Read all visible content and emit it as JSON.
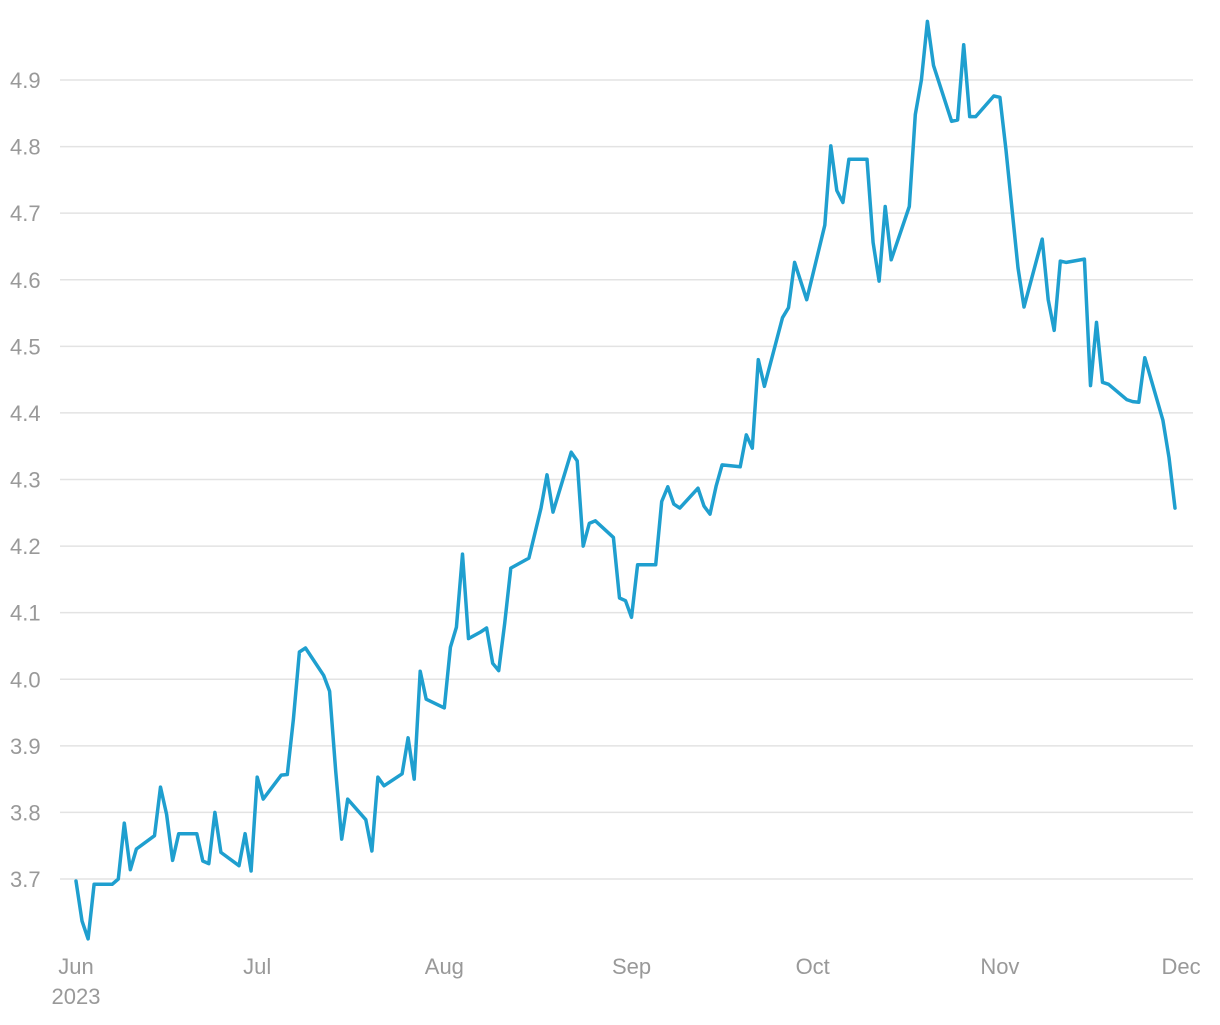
{
  "chart_data": {
    "type": "line",
    "title": "",
    "xlabel": "",
    "ylabel": "",
    "ylim": [
      3.6,
      4.99
    ],
    "yticks": [
      3.7,
      3.8,
      3.9,
      4.0,
      4.1,
      4.2,
      4.3,
      4.4,
      4.5,
      4.6,
      4.7,
      4.8,
      4.9
    ],
    "ytick_labels": [
      "3.7",
      "3.8",
      "3.9",
      "4.0",
      "4.1",
      "4.2",
      "4.3",
      "4.4",
      "4.5",
      "4.6",
      "4.7",
      "4.8",
      "4.9"
    ],
    "xlim": [
      "2023-05-30",
      "2023-12-01"
    ],
    "xticks": [
      {
        "date": "2023-06-01",
        "label": "Jun",
        "sublabel": "2023"
      },
      {
        "date": "2023-07-01",
        "label": "Jul",
        "sublabel": ""
      },
      {
        "date": "2023-08-01",
        "label": "Aug",
        "sublabel": ""
      },
      {
        "date": "2023-09-01",
        "label": "Sep",
        "sublabel": ""
      },
      {
        "date": "2023-10-01",
        "label": "Oct",
        "sublabel": ""
      },
      {
        "date": "2023-11-01",
        "label": "Nov",
        "sublabel": ""
      },
      {
        "date": "2023-12-01",
        "label": "Dec",
        "sublabel": ""
      }
    ],
    "grid": true,
    "line_color": "#1f9fcf",
    "series": [
      {
        "name": "",
        "points": [
          [
            "2023-06-01",
            3.697
          ],
          [
            "2023-06-02",
            3.637
          ],
          [
            "2023-06-03",
            3.61
          ],
          [
            "2023-06-04",
            3.692
          ],
          [
            "2023-06-07",
            3.692
          ],
          [
            "2023-06-08",
            3.7
          ],
          [
            "2023-06-09",
            3.784
          ],
          [
            "2023-06-10",
            3.714
          ],
          [
            "2023-06-11",
            3.745
          ],
          [
            "2023-06-14",
            3.765
          ],
          [
            "2023-06-15",
            3.838
          ],
          [
            "2023-06-16",
            3.797
          ],
          [
            "2023-06-17",
            3.728
          ],
          [
            "2023-06-18",
            3.768
          ],
          [
            "2023-06-21",
            3.768
          ],
          [
            "2023-06-22",
            3.727
          ],
          [
            "2023-06-23",
            3.723
          ],
          [
            "2023-06-24",
            3.8
          ],
          [
            "2023-06-25",
            3.74
          ],
          [
            "2023-06-28",
            3.72
          ],
          [
            "2023-06-29",
            3.768
          ],
          [
            "2023-06-30",
            3.712
          ],
          [
            "2023-07-01",
            3.853
          ],
          [
            "2023-07-02",
            3.82
          ],
          [
            "2023-07-05",
            3.856
          ],
          [
            "2023-07-06",
            3.857
          ],
          [
            "2023-07-07",
            3.94
          ],
          [
            "2023-07-08",
            4.041
          ],
          [
            "2023-07-09",
            4.047
          ],
          [
            "2023-07-12",
            4.006
          ],
          [
            "2023-07-13",
            3.982
          ],
          [
            "2023-07-14",
            3.862
          ],
          [
            "2023-07-15",
            3.76
          ],
          [
            "2023-07-16",
            3.82
          ],
          [
            "2023-07-19",
            3.789
          ],
          [
            "2023-07-20",
            3.742
          ],
          [
            "2023-07-21",
            3.853
          ],
          [
            "2023-07-22",
            3.84
          ],
          [
            "2023-07-25",
            3.858
          ],
          [
            "2023-07-26",
            3.912
          ],
          [
            "2023-07-27",
            3.85
          ],
          [
            "2023-07-28",
            4.012
          ],
          [
            "2023-07-29",
            3.97
          ],
          [
            "2023-08-01",
            3.957
          ],
          [
            "2023-08-02",
            4.048
          ],
          [
            "2023-08-03",
            4.078
          ],
          [
            "2023-08-04",
            4.188
          ],
          [
            "2023-08-05",
            4.061
          ],
          [
            "2023-08-07",
            4.071
          ],
          [
            "2023-08-08",
            4.077
          ],
          [
            "2023-08-09",
            4.024
          ],
          [
            "2023-08-10",
            4.013
          ],
          [
            "2023-08-11",
            4.084
          ],
          [
            "2023-08-12",
            4.167
          ],
          [
            "2023-08-15",
            4.182
          ],
          [
            "2023-08-17",
            4.257
          ],
          [
            "2023-08-18",
            4.307
          ],
          [
            "2023-08-19",
            4.251
          ],
          [
            "2023-08-22",
            4.341
          ],
          [
            "2023-08-23",
            4.328
          ],
          [
            "2023-08-24",
            4.2
          ],
          [
            "2023-08-25",
            4.234
          ],
          [
            "2023-08-26",
            4.238
          ],
          [
            "2023-08-29",
            4.213
          ],
          [
            "2023-08-30",
            4.122
          ],
          [
            "2023-08-31",
            4.118
          ],
          [
            "2023-09-01",
            4.093
          ],
          [
            "2023-09-02",
            4.172
          ],
          [
            "2023-09-05",
            4.172
          ],
          [
            "2023-09-06",
            4.267
          ],
          [
            "2023-09-07",
            4.289
          ],
          [
            "2023-09-08",
            4.263
          ],
          [
            "2023-09-09",
            4.257
          ],
          [
            "2023-09-12",
            4.287
          ],
          [
            "2023-09-13",
            4.26
          ],
          [
            "2023-09-14",
            4.248
          ],
          [
            "2023-09-15",
            4.29
          ],
          [
            "2023-09-16",
            4.322
          ],
          [
            "2023-09-19",
            4.319
          ],
          [
            "2023-09-20",
            4.367
          ],
          [
            "2023-09-21",
            4.347
          ],
          [
            "2023-09-22",
            4.48
          ],
          [
            "2023-09-23",
            4.44
          ],
          [
            "2023-09-26",
            4.543
          ],
          [
            "2023-09-27",
            4.558
          ],
          [
            "2023-09-28",
            4.626
          ],
          [
            "2023-09-30",
            4.57
          ],
          [
            "2023-10-03",
            4.682
          ],
          [
            "2023-10-04",
            4.801
          ],
          [
            "2023-10-05",
            4.734
          ],
          [
            "2023-10-06",
            4.716
          ],
          [
            "2023-10-07",
            4.781
          ],
          [
            "2023-10-10",
            4.781
          ],
          [
            "2023-10-11",
            4.656
          ],
          [
            "2023-10-12",
            4.598
          ],
          [
            "2023-10-13",
            4.71
          ],
          [
            "2023-10-14",
            4.63
          ],
          [
            "2023-10-17",
            4.71
          ],
          [
            "2023-10-18",
            4.848
          ],
          [
            "2023-10-19",
            4.9
          ],
          [
            "2023-10-20",
            4.988
          ],
          [
            "2023-10-21",
            4.922
          ],
          [
            "2023-10-24",
            4.838
          ],
          [
            "2023-10-25",
            4.84
          ],
          [
            "2023-10-26",
            4.953
          ],
          [
            "2023-10-27",
            4.845
          ],
          [
            "2023-10-28",
            4.845
          ],
          [
            "2023-10-31",
            4.876
          ],
          [
            "2023-11-01",
            4.874
          ],
          [
            "2023-11-02",
            4.796
          ],
          [
            "2023-11-04",
            4.618
          ],
          [
            "2023-11-05",
            4.559
          ],
          [
            "2023-11-08",
            4.661
          ],
          [
            "2023-11-09",
            4.57
          ],
          [
            "2023-11-10",
            4.524
          ],
          [
            "2023-11-11",
            4.628
          ],
          [
            "2023-11-12",
            4.626
          ],
          [
            "2023-11-15",
            4.631
          ],
          [
            "2023-11-16",
            4.441
          ],
          [
            "2023-11-17",
            4.536
          ],
          [
            "2023-11-18",
            4.446
          ],
          [
            "2023-11-19",
            4.443
          ],
          [
            "2023-11-22",
            4.42
          ],
          [
            "2023-11-23",
            4.417
          ],
          [
            "2023-11-24",
            4.416
          ],
          [
            "2023-11-25",
            4.483
          ],
          [
            "2023-11-28",
            4.389
          ],
          [
            "2023-11-29",
            4.333
          ],
          [
            "2023-11-30",
            4.257
          ]
        ]
      }
    ]
  }
}
